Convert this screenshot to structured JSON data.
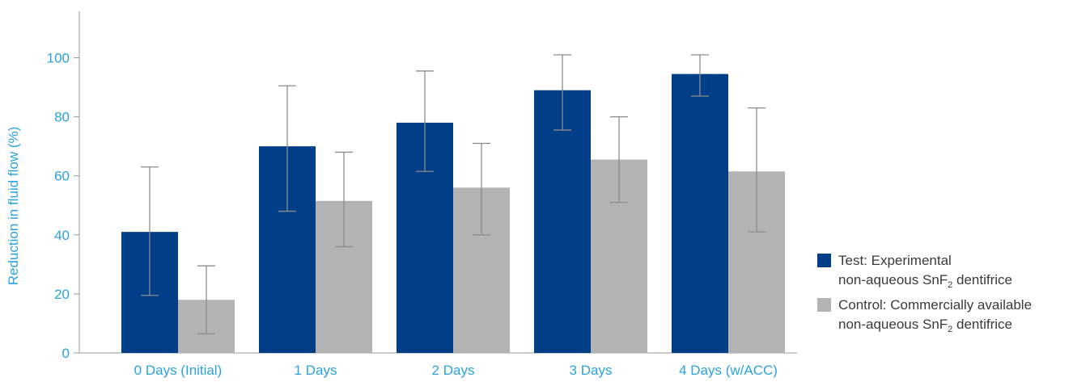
{
  "chart_data": {
    "type": "bar",
    "categories": [
      "0 Days (Initial)",
      "1 Days",
      "2 Days",
      "3 Days",
      "4 Days (w/ACC)"
    ],
    "series": [
      {
        "name": "Test: Experimental non-aqueous SnF2 dentifrice",
        "legend_line1": "Test: Experimental",
        "legend_line2_prefix": "non-aqueous SnF",
        "legend_line2_sub": "2",
        "legend_line2_suffix": " dentifrice",
        "color": "#003f87",
        "values": [
          41,
          70,
          78,
          89,
          94.5
        ],
        "error_low": [
          19.5,
          48,
          61.5,
          75.5,
          87
        ],
        "error_high": [
          63,
          90.5,
          95.5,
          101,
          101
        ]
      },
      {
        "name": "Control: Commercially available non-aqueous SnF2 dentifrice",
        "legend_line1": "Control: Commercially available",
        "legend_line2_prefix": "non-aqueous SnF",
        "legend_line2_sub": "2",
        "legend_line2_suffix": " dentifrice",
        "color": "#b3b3b3",
        "values": [
          18,
          51.5,
          56,
          65.5,
          61.5
        ],
        "error_low": [
          6.5,
          36,
          40,
          51,
          41
        ],
        "error_high": [
          29.5,
          68,
          71,
          80,
          83
        ]
      }
    ],
    "ylabel": "Reduction in fluid flow (%)",
    "xlabel": "",
    "ylim": [
      0,
      115
    ],
    "yticks": [
      0,
      20,
      40,
      60,
      80,
      100
    ],
    "legend_position": "right",
    "grid": false,
    "axis_label_color": "#2aa3dc",
    "axis_line_color": "#999999",
    "error_bar_color": "#8c8c8c"
  }
}
